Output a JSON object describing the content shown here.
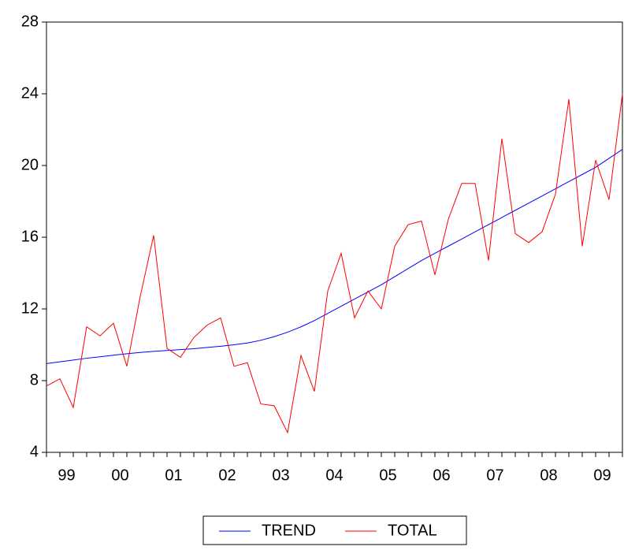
{
  "chart_data": {
    "type": "line",
    "categories": [
      null,
      "99",
      null,
      null,
      null,
      "00",
      null,
      null,
      null,
      "01",
      null,
      null,
      null,
      "02",
      null,
      null,
      null,
      "03",
      null,
      null,
      null,
      "04",
      null,
      null,
      null,
      "05",
      null,
      null,
      null,
      "06",
      null,
      null,
      null,
      "07",
      null,
      null,
      null,
      "08",
      null,
      null,
      null,
      "09",
      null,
      null
    ],
    "series": [
      {
        "name": "TREND",
        "color": "#0000ff",
        "values": [
          8.95,
          9.05,
          9.15,
          9.25,
          9.33,
          9.42,
          9.5,
          9.57,
          9.63,
          9.68,
          9.73,
          9.78,
          9.85,
          9.92,
          10.0,
          10.1,
          10.25,
          10.45,
          10.7,
          11.0,
          11.35,
          11.75,
          12.15,
          12.55,
          12.95,
          13.35,
          13.8,
          14.25,
          14.7,
          15.1,
          15.5,
          15.9,
          16.3,
          16.7,
          17.1,
          17.5,
          17.9,
          18.3,
          18.7,
          19.1,
          19.5,
          19.9,
          20.4,
          20.9
        ]
      },
      {
        "name": "TOTAL",
        "color": "#ff0000",
        "values": [
          7.7,
          8.1,
          6.5,
          11.0,
          10.5,
          11.2,
          8.8,
          12.7,
          16.1,
          9.8,
          9.3,
          10.4,
          11.1,
          11.5,
          8.8,
          9.0,
          6.7,
          6.6,
          5.1,
          9.4,
          7.4,
          13.0,
          15.1,
          11.5,
          13.0,
          12.0,
          15.5,
          16.7,
          16.9,
          13.9,
          17.0,
          19.0,
          19.0,
          14.7,
          21.5,
          16.2,
          15.7,
          16.3,
          18.4,
          23.7,
          15.5,
          20.3,
          18.1,
          24.0
        ]
      }
    ],
    "ylim": [
      4,
      28
    ],
    "yticks": [
      4,
      8,
      12,
      16,
      20,
      24,
      28
    ],
    "grid": false,
    "legend": "bottom"
  }
}
